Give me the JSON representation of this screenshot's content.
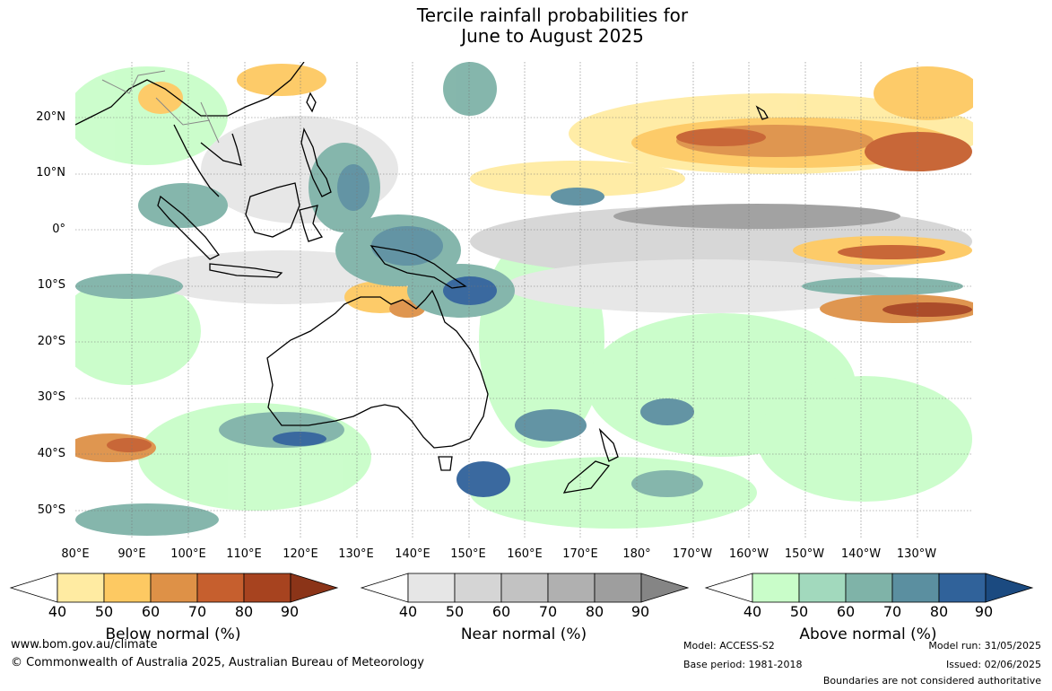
{
  "title_line1": "Tercile rainfall probabilities for",
  "title_line2": "June to August 2025",
  "lat_labels": [
    "20°N",
    "10°N",
    "0°",
    "10°S",
    "20°S",
    "30°S",
    "40°S",
    "50°S"
  ],
  "lon_labels": [
    "80°E",
    "90°E",
    "100°E",
    "110°E",
    "120°E",
    "130°E",
    "140°E",
    "150°E",
    "160°E",
    "170°E",
    "180°",
    "170°W",
    "160°W",
    "150°W",
    "140°W",
    "130°W"
  ],
  "colorbars": [
    {
      "label": "Below normal (%)",
      "ticks": [
        "40",
        "50",
        "60",
        "70",
        "80",
        "90"
      ],
      "colors": [
        "#ffffff",
        "#ffeba2",
        "#fdc962",
        "#de9147",
        "#c65f2e",
        "#a7431f",
        "#8b3418"
      ]
    },
    {
      "label": "Near normal (%)",
      "ticks": [
        "40",
        "50",
        "60",
        "70",
        "80",
        "90"
      ],
      "colors": [
        "#ffffff",
        "#e6e6e6",
        "#d5d5d5",
        "#c2c2c2",
        "#b0b0b0",
        "#9e9e9e",
        "#858585"
      ]
    },
    {
      "label": "Above normal (%)",
      "ticks": [
        "40",
        "50",
        "60",
        "70",
        "80",
        "90"
      ],
      "colors": [
        "#ffffff",
        "#c9fdc9",
        "#a2d9bd",
        "#7fb3a8",
        "#5b8fa0",
        "#30629a",
        "#1b4a80"
      ]
    }
  ],
  "footer": {
    "website": "www.bom.gov.au/climate",
    "copyright": "© Commonwealth of Australia 2025, Australian Bureau of Meteorology",
    "model": "Model: ACCESS-S2",
    "base_period": "Base period: 1981-2018",
    "model_run": "Model run: 31/05/2025",
    "issued": "Issued: 02/06/2025",
    "disclaimer": "Boundaries are not considered authoritative"
  }
}
